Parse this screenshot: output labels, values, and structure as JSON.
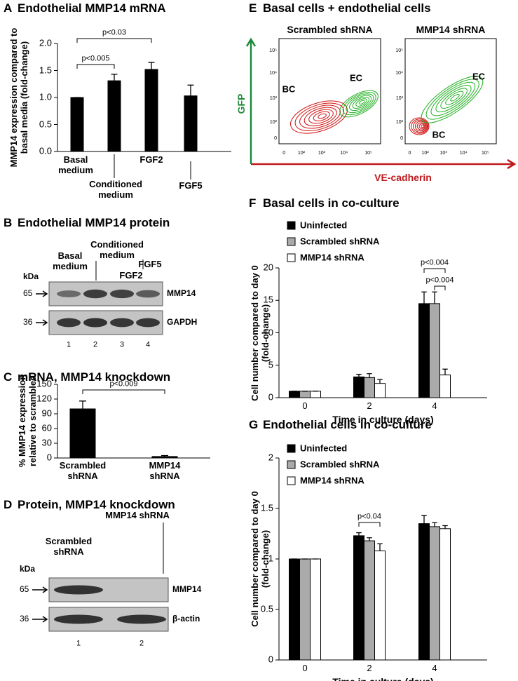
{
  "chart_data": [
    {
      "type": "bar",
      "panel": "A",
      "title": "Endothelial MMP14 mRNA",
      "y_label": "MMP14 expression compared to basal media (fold-change)",
      "categories": [
        "Basal medium",
        "Conditioned medium",
        "FGF2",
        "FGF5"
      ],
      "values": [
        1.0,
        1.31,
        1.52,
        1.03
      ],
      "errors": [
        0,
        0.12,
        0.13,
        0.2
      ],
      "color": "#000000",
      "ylim": [
        0,
        2
      ],
      "yticks": [
        {
          "value": 0,
          "label": "0.0"
        },
        {
          "value": 0.5,
          "label": "0.5"
        },
        {
          "value": 1,
          "label": "1.0"
        },
        {
          "value": 1.5,
          "label": "1.5"
        },
        {
          "value": 2,
          "label": "2.0"
        }
      ],
      "annotations": [
        "p<0.005",
        "p<0.03"
      ]
    },
    {
      "type": "bar",
      "panel": "C",
      "title": "mRNA, MMP14 knockdown",
      "y_label": "% MMP14 expression relative to scrambled",
      "categories": [
        "Scrambled shRNA",
        "MMP14 shRNA"
      ],
      "values": [
        100,
        3
      ],
      "errors": [
        16,
        2
      ],
      "color": "#000000",
      "ylim": [
        0,
        150
      ],
      "yticks": [
        0,
        30,
        60,
        90,
        120,
        150
      ],
      "annotations": [
        "p<0.009"
      ]
    },
    {
      "type": "bar",
      "panel": "F",
      "title": "Basal cells in co-culture",
      "x_label": "Time in culture (days)",
      "y_label": "Cell number compared to day 0 (fold-change)",
      "categories": [
        "0",
        "2",
        "4"
      ],
      "series": [
        {
          "name": "Uninfected",
          "color": "#000000",
          "values": [
            1,
            3.2,
            14.5
          ],
          "errors": [
            0,
            0.4,
            1.8
          ]
        },
        {
          "name": "Scrambled shRNA",
          "color": "#aaaaaa",
          "values": [
            1,
            3.1,
            14.5
          ],
          "errors": [
            0,
            0.6,
            1.8
          ]
        },
        {
          "name": "MMP14 shRNA",
          "color": "#ffffff",
          "values": [
            1,
            2.2,
            3.5
          ],
          "errors": [
            0,
            0.6,
            0.9
          ]
        }
      ],
      "ylim": [
        0,
        20
      ],
      "yticks": [
        0,
        5,
        10,
        15,
        20
      ],
      "annotations": [
        "p<0.004",
        "p<0.004"
      ]
    },
    {
      "type": "bar",
      "panel": "G",
      "title": "Endothelial cells in co-culture",
      "x_label": "Time in culture (days)",
      "y_label": "Cell number compared to day 0 (fold-change)",
      "categories": [
        "0",
        "2",
        "4"
      ],
      "series": [
        {
          "name": "Uninfected",
          "color": "#000000",
          "values": [
            1,
            1.23,
            1.35
          ],
          "errors": [
            0,
            0.03,
            0.08
          ]
        },
        {
          "name": "Scrambled shRNA",
          "color": "#aaaaaa",
          "values": [
            1,
            1.18,
            1.32
          ],
          "errors": [
            0,
            0.03,
            0.04
          ]
        },
        {
          "name": "MMP14 shRNA",
          "color": "#ffffff",
          "values": [
            1,
            1.08,
            1.3
          ],
          "errors": [
            0,
            0.07,
            0.03
          ]
        }
      ],
      "ylim": [
        0,
        2
      ],
      "yticks": [
        0,
        0.5,
        1,
        1.5,
        2
      ],
      "annotations": [
        "p<0.04"
      ]
    }
  ],
  "panel_b": {
    "label": "B",
    "title": "Endothelial MMP14 protein",
    "lanes_header": [
      "Basal medium",
      "Conditioned medium",
      "FGF2",
      "FGF5"
    ],
    "kda": "kDa",
    "markers": [
      {
        "size": "65",
        "band": "MMP14"
      },
      {
        "size": "36",
        "band": "GAPDH"
      }
    ],
    "lane_numbers": [
      "1",
      "2",
      "3",
      "4"
    ]
  },
  "panel_d": {
    "label": "D",
    "title": "Protein, MMP14 knockdown",
    "lanes_header": [
      "Scrambled shRNA",
      "MMP14 shRNA"
    ],
    "kda": "kDa",
    "markers": [
      {
        "size": "65",
        "band": "MMP14"
      },
      {
        "size": "36",
        "band": "β-actin"
      }
    ],
    "lane_numbers": [
      "1",
      "2"
    ]
  },
  "panel_e": {
    "label": "E",
    "title": "Basal cells + endothelial cells",
    "y_axis": "GFP",
    "x_axis": "VE-cadherin",
    "plots": [
      {
        "title": "Scrambled shRNA",
        "populations": [
          "BC",
          "EC"
        ]
      },
      {
        "title": "MMP14 shRNA",
        "populations": [
          "BC",
          "EC"
        ]
      }
    ],
    "yticks": [
      "10⁵",
      "10⁴",
      "10³",
      "10²",
      "0"
    ],
    "xticks": [
      "0",
      "10²",
      "10³",
      "10⁴",
      "10⁵"
    ]
  }
}
